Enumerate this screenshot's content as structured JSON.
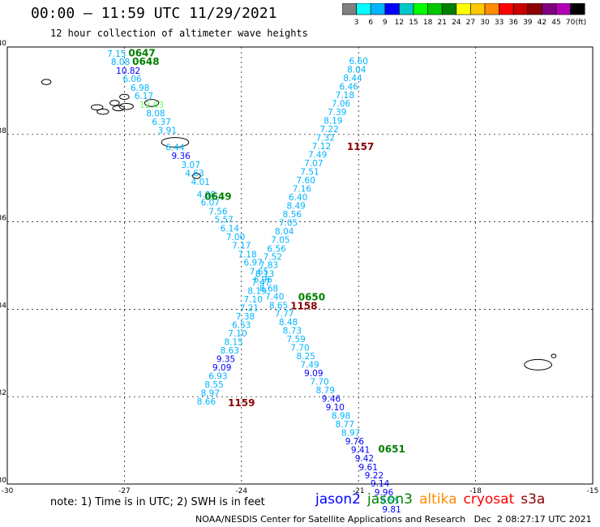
{
  "header": {
    "title": "00:00 – 11:59 UTC 11/29/2021",
    "subtitle": "12 hour collection of altimeter wave heights"
  },
  "colorbar": {
    "colors": [
      "#808080",
      "#00ffff",
      "#00b4ff",
      "#0000ff",
      "#00c8c8",
      "#00ff00",
      "#00c800",
      "#008000",
      "#ffff00",
      "#ffc800",
      "#ff8c00",
      "#ff0000",
      "#c80000",
      "#8c0000",
      "#800080",
      "#b400b4",
      "#000000"
    ],
    "labels": [
      "3",
      "6",
      "9",
      "12",
      "15",
      "18",
      "21",
      "24",
      "27",
      "30",
      "33",
      "36",
      "39",
      "42",
      "45",
      "70"
    ],
    "unit": "(ft)"
  },
  "chart_data": {
    "type": "scatter",
    "xlim": [
      -30,
      -15
    ],
    "ylim": [
      30,
      40
    ],
    "x_ticks": [
      "-30",
      "-27",
      "-24",
      "-21",
      "-18",
      "-15"
    ],
    "y_ticks": [
      "30",
      "32",
      "34",
      "36",
      "38",
      "40"
    ],
    "grid": true,
    "series": [
      {
        "name": "jason2",
        "color": "#0000ff"
      },
      {
        "name": "jason3",
        "color": "#008000"
      },
      {
        "name": "altika",
        "color": "#ff8c00"
      },
      {
        "name": "cryosat",
        "color": "#ff0000"
      },
      {
        "name": "s3a",
        "color": "#8c0000"
      }
    ],
    "points": [
      {
        "lon": -27.2,
        "lat": 39.78,
        "v": "7.15",
        "c": "#00b4ff"
      },
      {
        "lon": -27.1,
        "lat": 39.59,
        "v": "8.08",
        "c": "#00b4ff"
      },
      {
        "lon": -26.9,
        "lat": 39.39,
        "v": "10.82",
        "c": "#0000ff"
      },
      {
        "lon": -26.8,
        "lat": 39.2,
        "v": "6.06",
        "c": "#00b4ff"
      },
      {
        "lon": -26.6,
        "lat": 39.0,
        "v": "6.98",
        "c": "#00b4ff"
      },
      {
        "lon": -26.5,
        "lat": 38.81,
        "v": "6.17",
        "c": "#00b4ff"
      },
      {
        "lon": -26.3,
        "lat": 38.61,
        "v": "12.63",
        "c": "#66ff66"
      },
      {
        "lon": -26.2,
        "lat": 38.41,
        "v": "8.08",
        "c": "#00b4ff"
      },
      {
        "lon": -26.05,
        "lat": 38.22,
        "v": "6.37",
        "c": "#00b4ff"
      },
      {
        "lon": -25.9,
        "lat": 38.02,
        "v": "3.91",
        "c": "#00b4ff"
      },
      {
        "lon": -25.7,
        "lat": 37.63,
        "v": "6.44",
        "c": "#00b4ff"
      },
      {
        "lon": -25.55,
        "lat": 37.44,
        "v": "9.36",
        "c": "#0000ff"
      },
      {
        "lon": -25.3,
        "lat": 37.24,
        "v": "3.07",
        "c": "#00b4ff"
      },
      {
        "lon": -25.2,
        "lat": 37.04,
        "v": "4.63",
        "c": "#00b4ff"
      },
      {
        "lon": -25.05,
        "lat": 36.85,
        "v": "4.01",
        "c": "#00b4ff"
      },
      {
        "lon": -24.9,
        "lat": 36.56,
        "v": "4.98",
        "c": "#00b4ff"
      },
      {
        "lon": -24.8,
        "lat": 36.37,
        "v": "6.07",
        "c": "#00b4ff"
      },
      {
        "lon": -24.6,
        "lat": 36.17,
        "v": "7.56",
        "c": "#00b4ff"
      },
      {
        "lon": -24.45,
        "lat": 35.98,
        "v": "5.57",
        "c": "#00b4ff"
      },
      {
        "lon": -24.3,
        "lat": 35.78,
        "v": "6.14",
        "c": "#00b4ff"
      },
      {
        "lon": -24.15,
        "lat": 35.58,
        "v": "7.00",
        "c": "#00b4ff"
      },
      {
        "lon": -24.0,
        "lat": 35.39,
        "v": "7.17",
        "c": "#00b4ff"
      },
      {
        "lon": -23.85,
        "lat": 35.19,
        "v": "7.18",
        "c": "#00b4ff"
      },
      {
        "lon": -23.7,
        "lat": 35.0,
        "v": "6.97",
        "c": "#00b4ff"
      },
      {
        "lon": -23.55,
        "lat": 34.8,
        "v": "7.65",
        "c": "#00b4ff"
      },
      {
        "lon": -23.45,
        "lat": 34.61,
        "v": "6.96",
        "c": "#00b4ff"
      },
      {
        "lon": -23.3,
        "lat": 34.41,
        "v": "8.68",
        "c": "#00b4ff"
      },
      {
        "lon": -23.15,
        "lat": 34.22,
        "v": "7.40",
        "c": "#00b4ff"
      },
      {
        "lon": -23.05,
        "lat": 34.02,
        "v": "8.65",
        "c": "#00b4ff"
      },
      {
        "lon": -22.9,
        "lat": 33.83,
        "v": "7.77",
        "c": "#00b4ff"
      },
      {
        "lon": -22.8,
        "lat": 33.64,
        "v": "8.48",
        "c": "#00b4ff"
      },
      {
        "lon": -22.7,
        "lat": 33.44,
        "v": "8.73",
        "c": "#00b4ff"
      },
      {
        "lon": -22.6,
        "lat": 33.25,
        "v": "7.59",
        "c": "#00b4ff"
      },
      {
        "lon": -22.5,
        "lat": 33.05,
        "v": "7.70",
        "c": "#00b4ff"
      },
      {
        "lon": -22.35,
        "lat": 32.86,
        "v": "8.25",
        "c": "#00b4ff"
      },
      {
        "lon": -22.25,
        "lat": 32.66,
        "v": "7.49",
        "c": "#00b4ff"
      },
      {
        "lon": -22.15,
        "lat": 32.47,
        "v": "9.09",
        "c": "#0000ff"
      },
      {
        "lon": -22.0,
        "lat": 32.27,
        "v": "7.70",
        "c": "#00b4ff"
      },
      {
        "lon": -21.85,
        "lat": 32.08,
        "v": "8.79",
        "c": "#00b4ff"
      },
      {
        "lon": -21.7,
        "lat": 31.88,
        "v": "9.46",
        "c": "#0000ff"
      },
      {
        "lon": -21.6,
        "lat": 31.69,
        "v": "9.10",
        "c": "#0000ff"
      },
      {
        "lon": -21.45,
        "lat": 31.49,
        "v": "8.98",
        "c": "#00b4ff"
      },
      {
        "lon": -21.35,
        "lat": 31.3,
        "v": "8.77",
        "c": "#00b4ff"
      },
      {
        "lon": -21.2,
        "lat": 31.1,
        "v": "8.97",
        "c": "#00b4ff"
      },
      {
        "lon": -21.1,
        "lat": 30.91,
        "v": "9.76",
        "c": "#0000ff"
      },
      {
        "lon": -20.95,
        "lat": 30.71,
        "v": "9.41",
        "c": "#0000ff"
      },
      {
        "lon": -20.85,
        "lat": 30.52,
        "v": "9.42",
        "c": "#0000ff"
      },
      {
        "lon": -20.75,
        "lat": 30.32,
        "v": "9.61",
        "c": "#0000ff"
      },
      {
        "lon": -20.6,
        "lat": 30.13,
        "v": "9.22",
        "c": "#0000ff"
      },
      {
        "lon": -20.45,
        "lat": 29.94,
        "v": "9.14",
        "c": "#0000ff"
      },
      {
        "lon": -20.35,
        "lat": 29.74,
        "v": "9.96",
        "c": "#0000ff"
      },
      {
        "lon": -20.2,
        "lat": 29.55,
        "v": "8.55",
        "c": "#00b4ff"
      },
      {
        "lon": -20.15,
        "lat": 29.35,
        "v": "9.81",
        "c": "#0000ff"
      },
      {
        "lon": -21.0,
        "lat": 39.61,
        "v": "6.60",
        "c": "#00b4ff"
      },
      {
        "lon": -21.05,
        "lat": 39.42,
        "v": "8.04",
        "c": "#00b4ff"
      },
      {
        "lon": -21.15,
        "lat": 39.22,
        "v": "8.44",
        "c": "#00b4ff"
      },
      {
        "lon": -21.25,
        "lat": 39.03,
        "v": "6.46",
        "c": "#00b4ff"
      },
      {
        "lon": -21.35,
        "lat": 38.83,
        "v": "7.18",
        "c": "#00b4ff"
      },
      {
        "lon": -21.45,
        "lat": 38.64,
        "v": "7.06",
        "c": "#00b4ff"
      },
      {
        "lon": -21.55,
        "lat": 38.44,
        "v": "7.39",
        "c": "#00b4ff"
      },
      {
        "lon": -21.65,
        "lat": 38.25,
        "v": "8.19",
        "c": "#00b4ff"
      },
      {
        "lon": -21.75,
        "lat": 38.05,
        "v": "7.22",
        "c": "#00b4ff"
      },
      {
        "lon": -21.85,
        "lat": 37.86,
        "v": "7.32",
        "c": "#00b4ff"
      },
      {
        "lon": -21.95,
        "lat": 37.66,
        "v": "7.12",
        "c": "#00b4ff"
      },
      {
        "lon": -22.05,
        "lat": 37.47,
        "v": "7.49",
        "c": "#00b4ff"
      },
      {
        "lon": -22.15,
        "lat": 37.27,
        "v": "7.07",
        "c": "#00b4ff"
      },
      {
        "lon": -22.25,
        "lat": 37.08,
        "v": "7.51",
        "c": "#00b4ff"
      },
      {
        "lon": -22.35,
        "lat": 36.88,
        "v": "7.60",
        "c": "#00b4ff"
      },
      {
        "lon": -22.45,
        "lat": 36.69,
        "v": "7.16",
        "c": "#00b4ff"
      },
      {
        "lon": -22.55,
        "lat": 36.49,
        "v": "6.40",
        "c": "#00b4ff"
      },
      {
        "lon": -22.6,
        "lat": 36.3,
        "v": "8.49",
        "c": "#00b4ff"
      },
      {
        "lon": -22.7,
        "lat": 36.1,
        "v": "8.56",
        "c": "#00b4ff"
      },
      {
        "lon": -22.8,
        "lat": 35.91,
        "v": "7.05",
        "c": "#00b4ff"
      },
      {
        "lon": -22.9,
        "lat": 35.71,
        "v": "8.04",
        "c": "#00b4ff"
      },
      {
        "lon": -23.0,
        "lat": 35.52,
        "v": "7.05",
        "c": "#00b4ff"
      },
      {
        "lon": -23.1,
        "lat": 35.32,
        "v": "6.56",
        "c": "#00b4ff"
      },
      {
        "lon": -23.2,
        "lat": 35.13,
        "v": "7.52",
        "c": "#00b4ff"
      },
      {
        "lon": -23.3,
        "lat": 34.94,
        "v": "7.83",
        "c": "#00b4ff"
      },
      {
        "lon": -23.4,
        "lat": 34.74,
        "v": "8.13",
        "c": "#00b4ff"
      },
      {
        "lon": -23.5,
        "lat": 34.55,
        "v": "7.47",
        "c": "#00b4ff"
      },
      {
        "lon": -23.6,
        "lat": 34.35,
        "v": "8.19",
        "c": "#00b4ff"
      },
      {
        "lon": -23.7,
        "lat": 34.16,
        "v": "7.10",
        "c": "#00b4ff"
      },
      {
        "lon": -23.8,
        "lat": 33.96,
        "v": "7.21",
        "c": "#00b4ff"
      },
      {
        "lon": -23.9,
        "lat": 33.77,
        "v": "7.38",
        "c": "#00b4ff"
      },
      {
        "lon": -24.0,
        "lat": 33.57,
        "v": "6.53",
        "c": "#00b4ff"
      },
      {
        "lon": -24.1,
        "lat": 33.38,
        "v": "7.10",
        "c": "#00b4ff"
      },
      {
        "lon": -24.2,
        "lat": 33.18,
        "v": "8.15",
        "c": "#00b4ff"
      },
      {
        "lon": -24.3,
        "lat": 32.99,
        "v": "8.63",
        "c": "#00b4ff"
      },
      {
        "lon": -24.4,
        "lat": 32.79,
        "v": "9.35",
        "c": "#0000ff"
      },
      {
        "lon": -24.5,
        "lat": 32.6,
        "v": "9.09",
        "c": "#0000ff"
      },
      {
        "lon": -24.6,
        "lat": 32.4,
        "v": "6.93",
        "c": "#00b4ff"
      },
      {
        "lon": -24.7,
        "lat": 32.21,
        "v": "8.55",
        "c": "#00b4ff"
      },
      {
        "lon": -24.8,
        "lat": 32.01,
        "v": "8.97",
        "c": "#00b4ff"
      },
      {
        "lon": -24.9,
        "lat": 31.82,
        "v": "8.66",
        "c": "#00b4ff"
      }
    ],
    "annotations": [
      {
        "lon": -26.55,
        "lat": 39.79,
        "text": "0647",
        "c": "#008000"
      },
      {
        "lon": -26.45,
        "lat": 39.59,
        "text": "0648",
        "c": "#008000"
      },
      {
        "lon": -24.6,
        "lat": 36.5,
        "text": "0649",
        "c": "#008000"
      },
      {
        "lon": -22.2,
        "lat": 34.2,
        "text": "0650",
        "c": "#008000"
      },
      {
        "lon": -20.15,
        "lat": 30.72,
        "text": "0651",
        "c": "#008000"
      },
      {
        "lon": -20.95,
        "lat": 37.64,
        "text": "1157",
        "c": "#8c0000"
      },
      {
        "lon": -22.4,
        "lat": 34.0,
        "text": "1158",
        "c": "#8c0000"
      },
      {
        "lon": -24.0,
        "lat": 31.78,
        "text": "1159",
        "c": "#8c0000"
      }
    ]
  },
  "note": "note: 1) Time is in UTC; 2) SWH is in feet",
  "footer": "NOAA/NESDIS Center for Satellite Applications and Research   Dec  2 08:27:17 UTC 2021"
}
